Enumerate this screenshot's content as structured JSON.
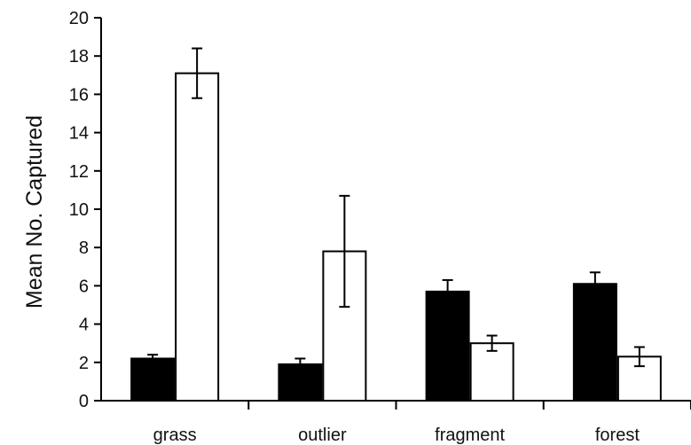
{
  "chart_data": {
    "type": "bar",
    "title": "",
    "xlabel": "",
    "ylabel": "Mean No. Captured",
    "ylim": [
      0,
      20
    ],
    "yticks": [
      0,
      2,
      4,
      6,
      8,
      10,
      12,
      14,
      16,
      18,
      20
    ],
    "grid": false,
    "legend": "none",
    "categories": [
      "grass",
      "outlier",
      "fragment",
      "forest"
    ],
    "series": [
      {
        "color": "#000000",
        "values": [
          2.2,
          1.9,
          5.7,
          6.1
        ],
        "errors": [
          0.2,
          0.3,
          0.6,
          0.6
        ]
      },
      {
        "color": "#ffffff",
        "values": [
          17.1,
          7.8,
          3.0,
          2.3
        ],
        "errors": [
          1.3,
          2.9,
          0.4,
          0.5
        ]
      }
    ]
  }
}
